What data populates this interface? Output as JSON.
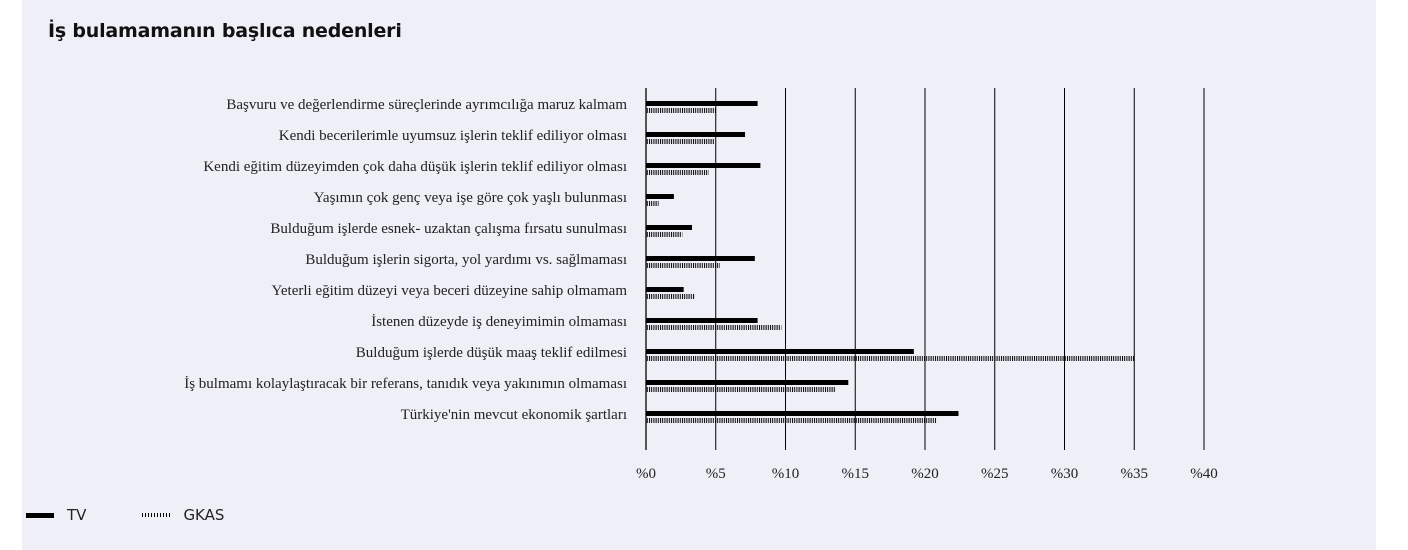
{
  "chart_data": {
    "type": "bar",
    "orientation": "horizontal",
    "title": "İş bulamamanın başlıca nedenleri",
    "categories": [
      "Başvuru ve değerlendirme süreçlerinde ayrımcılığa maruz kalmam",
      "Kendi becerilerimle uyumsuz işlerin teklif ediliyor olması",
      "Kendi eğitim düzeyimden çok daha düşük işlerin teklif ediliyor olması",
      "Yaşımın çok genç veya işe göre çok yaşlı bulunması",
      "Bulduğum işlerde esnek- uzaktan çalışma fırsatu sunulması",
      "Bulduğum işlerin sigorta, yol yardımı vs. sağlmaması",
      "Yeterli eğitim düzeyi veya beceri düzeyine sahip olmamam",
      "İstenen düzeyde iş deneyimimin olmaması",
      "Bulduğum işlerde düşük maaş teklif edilmesi",
      "İş bulmamı kolaylaştıracak bir referans, tanıdık veya yakınımın olmaması",
      "Türkiye'nin mevcut ekonomik şartları"
    ],
    "series": [
      {
        "name": "TV",
        "style": "solid",
        "color": "#000000",
        "values": [
          8.0,
          7.1,
          8.2,
          2.0,
          3.3,
          7.8,
          2.7,
          8.0,
          19.2,
          14.5,
          22.4
        ]
      },
      {
        "name": "GKAS",
        "style": "hatched",
        "color": "#000000",
        "values": [
          5.0,
          4.9,
          4.5,
          0.9,
          2.6,
          5.3,
          3.5,
          9.7,
          35.0,
          13.6,
          20.8
        ]
      }
    ],
    "xlim": [
      0,
      40
    ],
    "xticks": [
      0,
      5,
      10,
      15,
      20,
      25,
      30,
      35,
      40
    ],
    "tick_prefix": "%",
    "grid": true,
    "legend_position": "bottom-left"
  }
}
